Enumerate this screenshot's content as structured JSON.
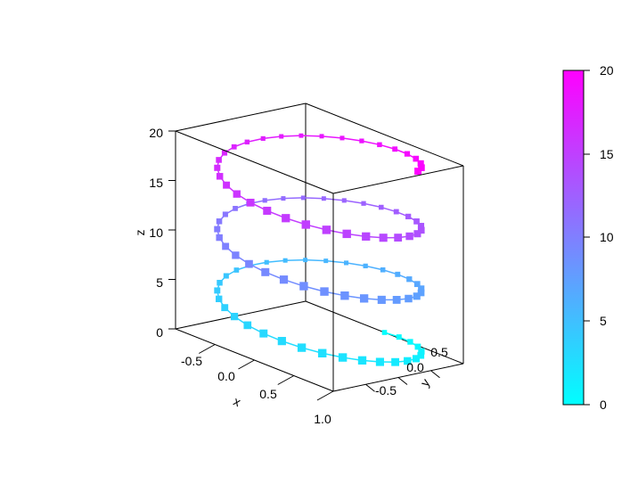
{
  "chart_data": {
    "type": "scatter3d",
    "title": "",
    "x_axis": {
      "label": "x",
      "ticks": [
        "-0.5",
        "0.0",
        "0.5",
        "1.0"
      ],
      "range": [
        -1,
        1
      ]
    },
    "y_axis": {
      "label": "y",
      "ticks": [
        "-0.5",
        "0.0",
        "0.5"
      ],
      "range": [
        -1,
        1
      ]
    },
    "z_axis": {
      "label": "z",
      "ticks": [
        "0",
        "5",
        "10",
        "15",
        "20"
      ],
      "range": [
        0,
        20
      ]
    },
    "series": [
      {
        "parametric": "helix",
        "x": "sin(t)",
        "y": "cos(t)",
        "z": "t",
        "t_range": [
          0,
          20
        ],
        "points": 100,
        "lines": true
      }
    ],
    "colorbar": {
      "ticks": [
        "0",
        "5",
        "10",
        "15",
        "20"
      ],
      "range": [
        0,
        20
      ],
      "color_low": "#00ffff",
      "color_high": "#ff00ff",
      "placement": "right"
    },
    "box": true,
    "grid": false
  }
}
